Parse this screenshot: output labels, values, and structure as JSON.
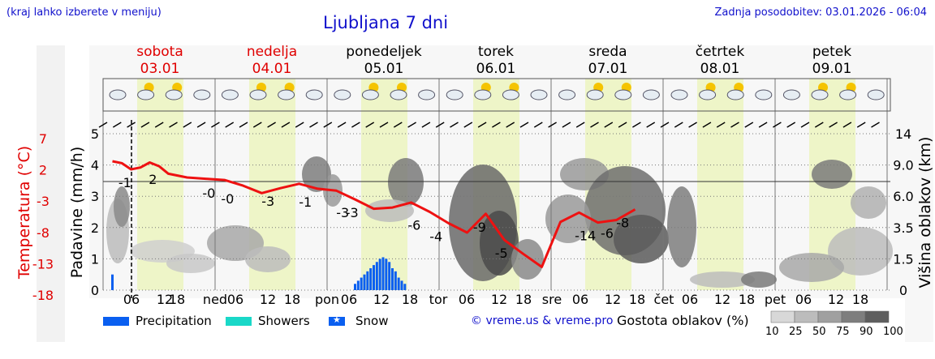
{
  "header": {
    "hint": "(kraj lahko izberete v meniju)",
    "title": "Ljubljana 7 dni",
    "updated": "Zadnja posodobitev: 03.01.2026 - 06:04"
  },
  "days": [
    {
      "name": "sobota",
      "date": "03.01",
      "weekend": true
    },
    {
      "name": "nedelja",
      "date": "04.01",
      "weekend": true
    },
    {
      "name": "ponedeljek",
      "date": "05.01",
      "weekend": false
    },
    {
      "name": "torek",
      "date": "06.01",
      "weekend": false
    },
    {
      "name": "sreda",
      "date": "07.01",
      "weekend": false
    },
    {
      "name": "četrtek",
      "date": "08.01",
      "weekend": false
    },
    {
      "name": "petek",
      "date": "09.01",
      "weekend": false
    }
  ],
  "chart_data": {
    "type": "line",
    "title": "Ljubljana 7 dni",
    "y_left_temperature": {
      "label": "Temperatura (°C)",
      "ticks": [
        7,
        2,
        -3,
        -8,
        -13,
        -18
      ],
      "range": [
        -18,
        7
      ]
    },
    "y_left_precipitation": {
      "label": "Padavine (mm/h)",
      "ticks": [
        0,
        1,
        2,
        3,
        4,
        5
      ],
      "range": [
        0,
        5
      ]
    },
    "y_right_cloud_height": {
      "label": "Višina oblakov (km)",
      "ticks": [
        "0",
        "1.5",
        "3.5",
        "6.0",
        "9.0",
        "14"
      ]
    },
    "x_ticks": [
      "06",
      "12",
      "18",
      "ned",
      "06",
      "12",
      "18",
      "pon",
      "06",
      "12",
      "18",
      "tor",
      "06",
      "12",
      "18",
      "sre",
      "06",
      "12",
      "18",
      "čet",
      "06",
      "12",
      "18",
      "pet",
      "06",
      "12",
      "18"
    ],
    "temperature_series": {
      "name": "Temperatura",
      "color": "#ee1111",
      "x_hours": [
        0,
        3,
        6,
        9,
        12,
        15,
        18,
        24,
        30,
        36,
        42,
        48,
        54,
        60,
        66,
        72,
        78,
        84,
        90,
        96,
        102,
        108,
        114,
        120,
        126,
        132,
        138,
        144,
        150,
        156,
        162,
        168
      ],
      "values": [
        2.6,
        2.3,
        1.3,
        1.6,
        2.4,
        1.8,
        0.6,
        0.0,
        -0.2,
        -0.4,
        -1.3,
        -2.5,
        -1.7,
        -1.0,
        -1.8,
        -2.1,
        -3.5,
        -5.0,
        -4.8,
        -4.0,
        -5.5,
        -7.3,
        -8.8,
        -5.8,
        -10.0,
        -12.2,
        -14.3,
        -7.1,
        -5.6,
        -7.2,
        -6.8,
        -5.1
      ]
    },
    "temperature_labels": [
      {
        "x_hour": 4,
        "text": "-1"
      },
      {
        "x_hour": 13,
        "text": "2"
      },
      {
        "x_hour": 31,
        "text": "-0"
      },
      {
        "x_hour": 37,
        "text": "-0"
      },
      {
        "x_hour": 50,
        "text": "-3"
      },
      {
        "x_hour": 62,
        "text": "-1"
      },
      {
        "x_hour": 74,
        "text": "-3"
      },
      {
        "x_hour": 77,
        "text": "-3"
      },
      {
        "x_hour": 97,
        "text": "-6"
      },
      {
        "x_hour": 104,
        "text": "-4"
      },
      {
        "x_hour": 118,
        "text": "-9"
      },
      {
        "x_hour": 125,
        "text": "-5"
      },
      {
        "x_hour": 152,
        "text": "-14"
      },
      {
        "x_hour": 159,
        "text": "-6"
      },
      {
        "x_hour": 164,
        "text": "-8"
      }
    ],
    "precipitation_series": {
      "name": "Precipitation",
      "color": "#0a5ff0",
      "x_hours": [
        0,
        78,
        79,
        80,
        81,
        82,
        83,
        84,
        85,
        86,
        87,
        88,
        89,
        90,
        91,
        92,
        93,
        94
      ],
      "values": [
        0.5,
        0.2,
        0.3,
        0.4,
        0.5,
        0.6,
        0.7,
        0.8,
        0.9,
        1.0,
        1.05,
        1.0,
        0.9,
        0.7,
        0.6,
        0.4,
        0.3,
        0.2
      ]
    },
    "legend": [
      {
        "name": "Precipitation",
        "color": "#0a5ff0",
        "symbol": "bar"
      },
      {
        "name": "Showers",
        "color": "#1ad8c8",
        "symbol": "bar"
      },
      {
        "name": "Snow",
        "color": "#0a5ff0",
        "symbol": "star-icon"
      }
    ],
    "cloud_scale": {
      "title": "Gostota oblakov (%)",
      "steps": [
        "10",
        "25",
        "50",
        "75",
        "90",
        "100"
      ],
      "colors": [
        "#d8d8d8",
        "#bcbcbc",
        "#a0a0a0",
        "#7e7e7e",
        "#5e5e5e"
      ]
    },
    "grid": true
  },
  "footer": {
    "credit": "© vreme.us & vreme.pro"
  }
}
